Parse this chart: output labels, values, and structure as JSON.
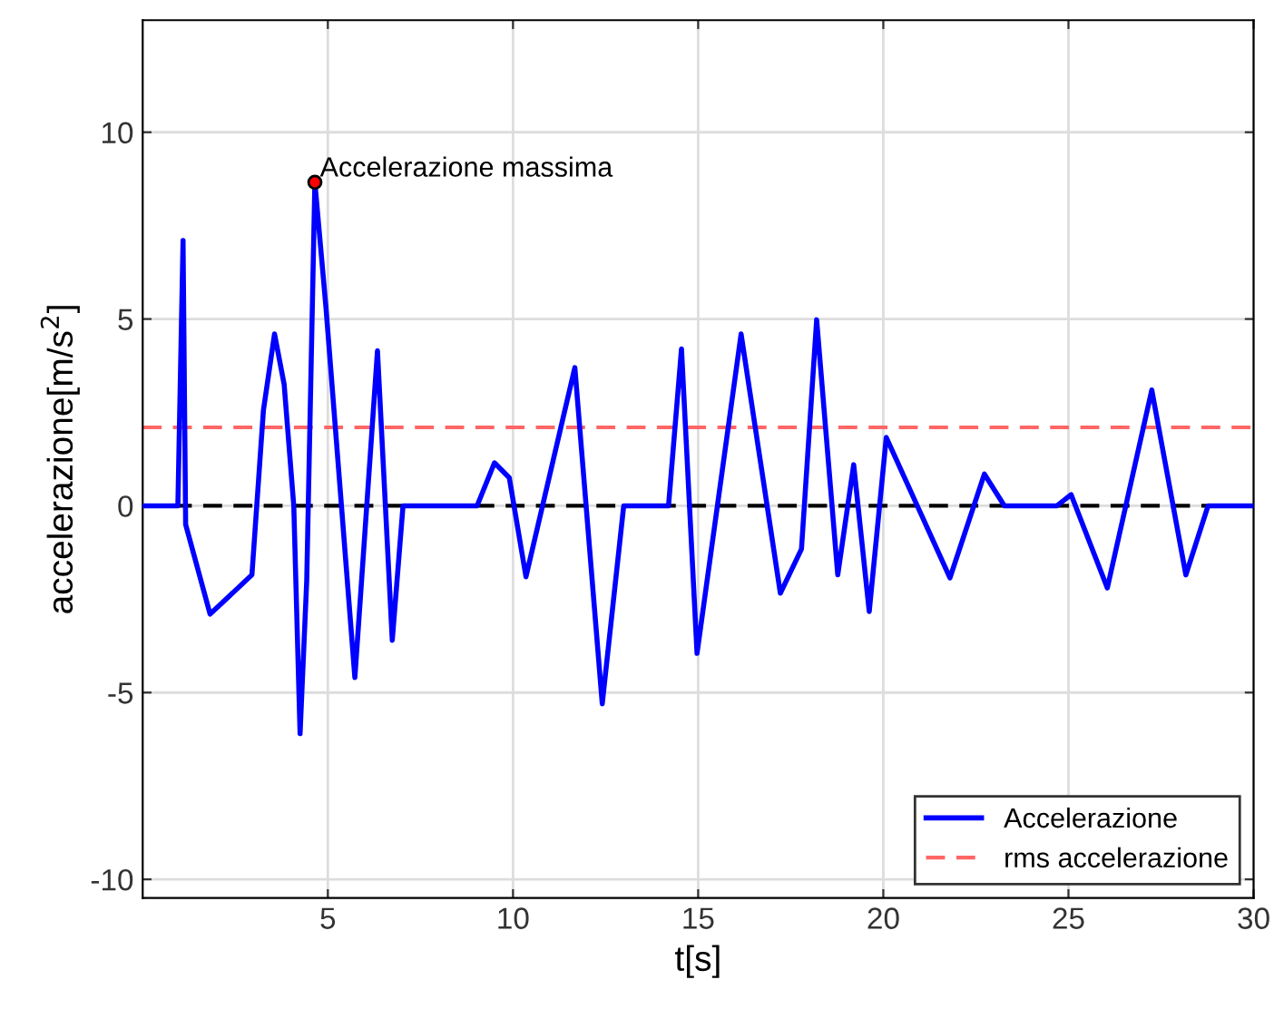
{
  "chart_data": {
    "type": "line",
    "xlabel": "t[s]",
    "ylabel": "accelerazione[m/s$^{2}$]",
    "xlim": [
      0,
      30
    ],
    "xticks": [
      5,
      10,
      15,
      20,
      25,
      30
    ],
    "ylim": [
      -10.5,
      13
    ],
    "yticks": [
      -10,
      -5,
      0,
      5,
      10
    ],
    "grid": true,
    "legend": "bottom right",
    "line_style": "solid",
    "marker": "none",
    "series": [
      {
        "name": "Accelerazione",
        "color": "#0000ff",
        "x": [
          0,
          0.95,
          1.09,
          1.16,
          1.82,
          2.95,
          3.26,
          3.56,
          3.82,
          4.08,
          4.25,
          4.43,
          4.65,
          4.95,
          5.73,
          6.34,
          6.74,
          7.03,
          9.03,
          9.5,
          9.9,
          10.35,
          11.67,
          12.41,
          12.99,
          14.2,
          14.55,
          14.97,
          16.16,
          17.22,
          17.79,
          18.2,
          18.77,
          19.2,
          19.62,
          20.08,
          21.8,
          22.73,
          23.27,
          24.69,
          25.07,
          26.05,
          27.25,
          28.17,
          28.77,
          30
        ],
        "values": [
          0,
          0,
          7.1,
          -0.5,
          -2.9,
          -1.85,
          2.55,
          4.6,
          3.25,
          0,
          -6.1,
          -2,
          8.66,
          5.3,
          -4.6,
          4.15,
          -3.6,
          0,
          0,
          1.15,
          0.75,
          -1.9,
          3.7,
          -5.3,
          0,
          0,
          4.2,
          -3.95,
          4.6,
          -2.34,
          -1.16,
          4.98,
          -1.85,
          1.1,
          -2.83,
          1.83,
          -1.93,
          0.85,
          0,
          0,
          0.3,
          -2.2,
          3.1,
          -1.85,
          0,
          0
        ]
      }
    ],
    "ref_lines": [
      {
        "axis": "y",
        "value": 2.1,
        "label": "rms accelerazione",
        "color": "#ff6666",
        "line_style": "dashed"
      },
      {
        "axis": "y",
        "value": 0,
        "color": "#000000",
        "line_style": "dashed"
      }
    ],
    "annotations": [
      {
        "text": "Accelerazione massima",
        "x": 4.65,
        "y": 8.66
      }
    ]
  }
}
